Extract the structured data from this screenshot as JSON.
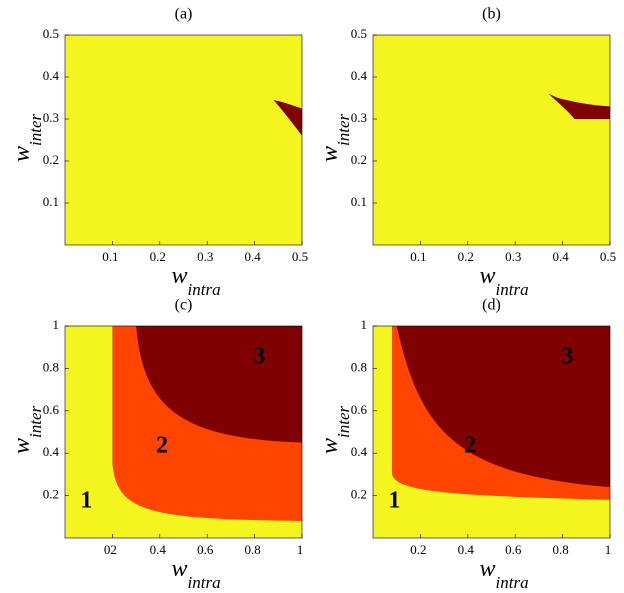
{
  "chart_data": [
    {
      "type": "region",
      "title": "(a)",
      "xlabel": {
        "main": "w",
        "sub": "intra"
      },
      "ylabel": {
        "main": "w",
        "sub": "inter"
      },
      "xlim": [
        0,
        0.5
      ],
      "ylim": [
        0,
        0.5
      ],
      "xticks": [
        0.1,
        0.2,
        0.3,
        0.4,
        0.5
      ],
      "yticks": [
        0.1,
        0.2,
        0.3,
        0.4,
        0.5
      ],
      "colors": [
        "#f4f41f",
        "#7f0000"
      ],
      "annotations": []
    },
    {
      "type": "region",
      "title": "(b)",
      "xlabel": {
        "main": "w",
        "sub": "intra"
      },
      "ylabel": {
        "main": "w",
        "sub": "inter"
      },
      "xlim": [
        0,
        0.5
      ],
      "ylim": [
        0,
        0.5
      ],
      "xticks": [
        0.1,
        0.2,
        0.3,
        0.4,
        0.5
      ],
      "yticks": [
        0.1,
        0.2,
        0.3,
        0.4,
        0.5
      ],
      "colors": [
        "#f4f41f",
        "#7f0000"
      ],
      "annotations": []
    },
    {
      "type": "region",
      "title": "(c)",
      "xlabel": {
        "main": "w",
        "sub": "intra"
      },
      "ylabel": {
        "main": "w",
        "sub": "inter"
      },
      "xlim": [
        0,
        1
      ],
      "ylim": [
        0,
        1
      ],
      "xticks": [
        {
          "value": 0.2,
          "label": "02"
        },
        0.4,
        0.6,
        0.8,
        1
      ],
      "yticks": [
        0.2,
        0.4,
        0.6,
        0.8,
        1
      ],
      "colors": [
        "#f4f41f",
        "#ff4500",
        "#7f0000"
      ],
      "annotations": [
        "1",
        "2",
        "3"
      ]
    },
    {
      "type": "region",
      "title": "(d)",
      "xlabel": {
        "main": "w",
        "sub": "intra"
      },
      "ylabel": {
        "main": "w",
        "sub": "inter"
      },
      "xlim": [
        0,
        1
      ],
      "ylim": [
        0,
        1
      ],
      "xticks": [
        0.2,
        0.4,
        0.6,
        0.8,
        1
      ],
      "yticks": [
        0.2,
        0.4,
        0.6,
        0.8,
        1
      ],
      "colors": [
        "#f4f41f",
        "#ff4500",
        "#7f0000"
      ],
      "annotations": [
        "1",
        "2",
        "3"
      ]
    }
  ]
}
